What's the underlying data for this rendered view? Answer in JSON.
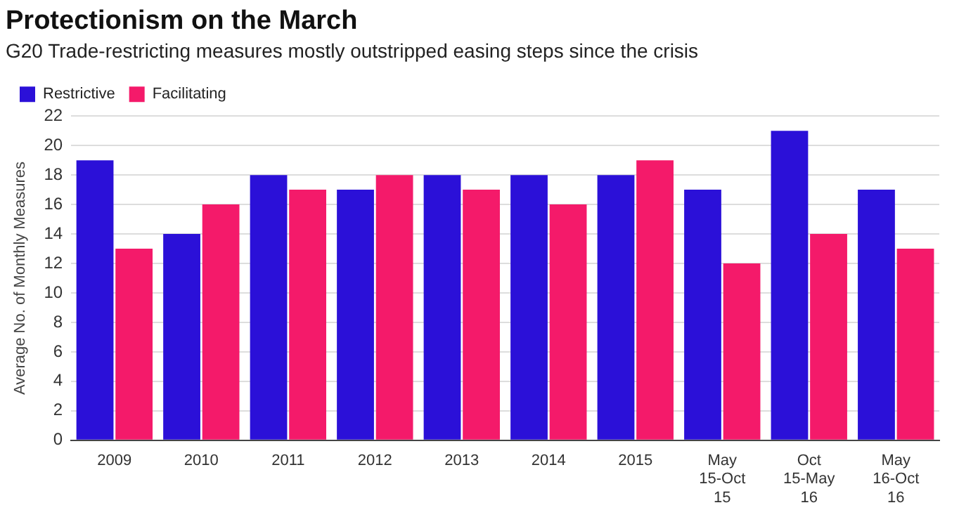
{
  "chart_data": {
    "type": "bar",
    "title": "Protectionism on the March",
    "subtitle": "G20 Trade-restricting measures mostly outstripped easing steps since the crisis",
    "ylabel": "Average No. of Monthly Measures",
    "categories": [
      "2009",
      "2010",
      "2011",
      "2012",
      "2013",
      "2014",
      "2015",
      "May 15-Oct 15",
      "Oct 15-May 16",
      "May 16-Oct 16"
    ],
    "series": [
      {
        "name": "Restrictive",
        "color": "#2b10d8",
        "values": [
          19,
          14,
          18,
          17,
          18,
          18,
          18,
          17,
          21,
          17
        ]
      },
      {
        "name": "Facilitating",
        "color": "#f41a6a",
        "values": [
          13,
          16,
          17,
          18,
          17,
          16,
          19,
          12,
          14,
          13
        ]
      }
    ],
    "ylim": [
      0,
      22
    ],
    "yticks": [
      0,
      2,
      4,
      6,
      8,
      10,
      12,
      14,
      16,
      18,
      20,
      22
    ],
    "grid": "y",
    "legend": "top left"
  }
}
